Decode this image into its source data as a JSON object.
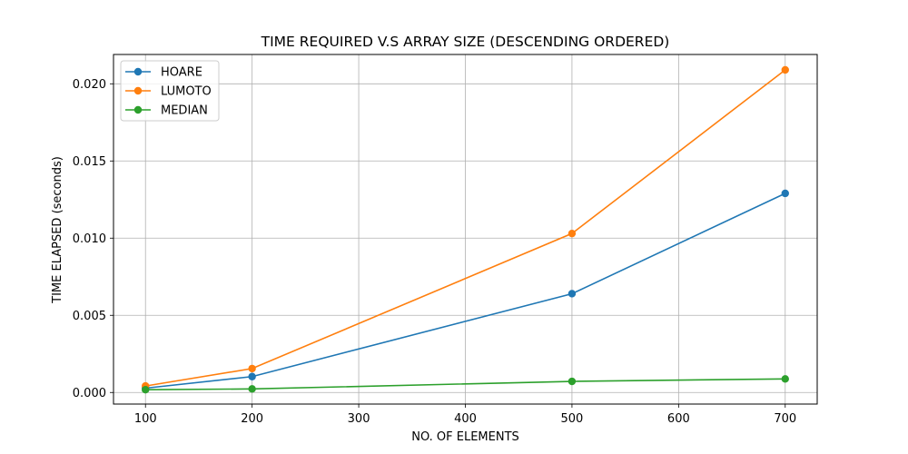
{
  "chart_data": {
    "type": "line",
    "title": "TIME REQUIRED V.S ARRAY SIZE (DESCENDING ORDERED)",
    "xlabel": "NO. OF ELEMENTS",
    "ylabel": "TIME ELAPSED (seconds)",
    "x": [
      100,
      200,
      500,
      700
    ],
    "xlim": [
      70,
      730
    ],
    "ylim": [
      -0.00075,
      0.0219
    ],
    "xticks": [
      100,
      200,
      300,
      400,
      500,
      600,
      700
    ],
    "xtick_labels": [
      "100",
      "200",
      "300",
      "400",
      "500",
      "600",
      "700"
    ],
    "yticks": [
      0.0,
      0.005,
      0.01,
      0.015,
      0.02
    ],
    "ytick_labels": [
      "0.000",
      "0.005",
      "0.010",
      "0.015",
      "0.020"
    ],
    "grid": true,
    "legend_position": "top-left",
    "series": [
      {
        "name": "HOARE",
        "color": "#1f77b4",
        "values": [
          0.00028,
          0.00103,
          0.0064,
          0.0129
        ]
      },
      {
        "name": "LUMOTO",
        "color": "#ff7f0e",
        "values": [
          0.00042,
          0.00155,
          0.0103,
          0.0209
        ]
      },
      {
        "name": "MEDIAN",
        "color": "#2ca02c",
        "values": [
          0.00018,
          0.00023,
          0.00072,
          0.00088
        ]
      }
    ]
  }
}
